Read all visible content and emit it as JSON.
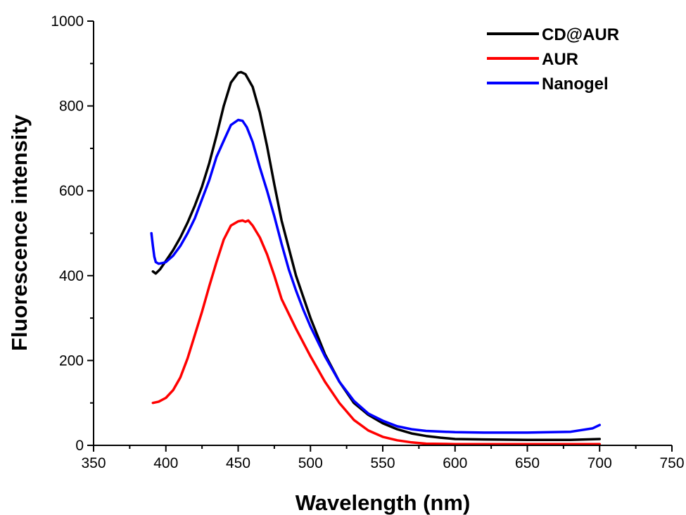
{
  "chart_data": {
    "type": "line",
    "title": "",
    "xlabel": "Wavelength (nm)",
    "ylabel": "Fluorescence intensity",
    "xlim": [
      350,
      750
    ],
    "ylim": [
      0,
      1000
    ],
    "xticks": [
      350,
      400,
      450,
      500,
      550,
      600,
      650,
      700,
      750
    ],
    "yticks": [
      0,
      200,
      400,
      600,
      800,
      1000
    ],
    "xtick_labels": [
      "350",
      "400",
      "450",
      "500",
      "550",
      "600",
      "650",
      "700",
      "750"
    ],
    "ytick_labels": [
      "0",
      "200",
      "400",
      "600",
      "800",
      "1000"
    ],
    "grid": false,
    "legend_position": "top-right",
    "series": [
      {
        "name": "CD@AUR",
        "color": "#000000",
        "x": [
          391,
          393,
          396,
          400,
          405,
          410,
          415,
          420,
          425,
          430,
          435,
          440,
          445,
          450,
          452,
          455,
          460,
          465,
          470,
          475,
          480,
          490,
          500,
          510,
          520,
          530,
          540,
          550,
          560,
          570,
          580,
          590,
          600,
          620,
          650,
          680,
          700
        ],
        "y": [
          410,
          405,
          415,
          435,
          460,
          490,
          525,
          565,
          610,
          665,
          730,
          800,
          855,
          878,
          880,
          875,
          845,
          785,
          705,
          615,
          530,
          400,
          300,
          215,
          150,
          100,
          72,
          52,
          38,
          28,
          22,
          18,
          15,
          14,
          13,
          13,
          15
        ]
      },
      {
        "name": "AUR",
        "color": "#ff0000",
        "x": [
          391,
          395,
          400,
          405,
          410,
          415,
          420,
          425,
          430,
          435,
          440,
          445,
          450,
          453,
          455,
          457,
          460,
          465,
          470,
          475,
          480,
          490,
          500,
          510,
          520,
          530,
          540,
          550,
          560,
          570,
          580,
          600,
          650,
          700
        ],
        "y": [
          100,
          103,
          112,
          130,
          160,
          205,
          260,
          315,
          375,
          432,
          485,
          518,
          528,
          530,
          527,
          530,
          518,
          490,
          450,
          400,
          345,
          275,
          210,
          150,
          100,
          60,
          35,
          20,
          12,
          7,
          4,
          3,
          3,
          3
        ]
      },
      {
        "name": "Nanogel",
        "color": "#0000ff",
        "x": [
          390,
          391,
          392,
          393,
          395,
          398,
          400,
          405,
          410,
          415,
          420,
          425,
          430,
          435,
          440,
          445,
          450,
          453,
          456,
          460,
          465,
          470,
          475,
          480,
          485,
          490,
          495,
          500,
          510,
          520,
          530,
          540,
          550,
          560,
          570,
          580,
          600,
          620,
          650,
          680,
          695,
          700
        ],
        "y": [
          500,
          470,
          445,
          432,
          428,
          430,
          432,
          447,
          470,
          500,
          535,
          580,
          625,
          680,
          718,
          755,
          767,
          765,
          750,
          715,
          655,
          600,
          540,
          475,
          415,
          365,
          320,
          280,
          210,
          150,
          105,
          75,
          58,
          45,
          38,
          34,
          31,
          30,
          30,
          32,
          40,
          48
        ]
      }
    ]
  }
}
